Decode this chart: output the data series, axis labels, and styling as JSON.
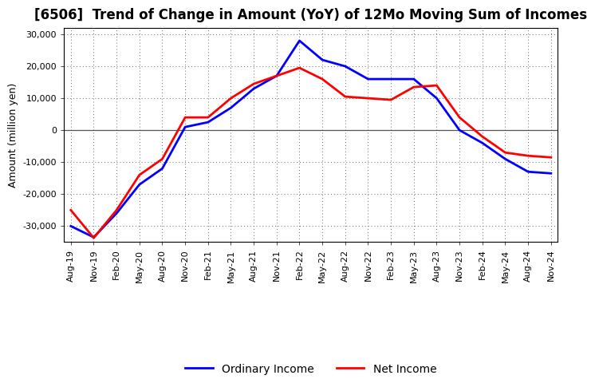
{
  "title": "[6506]  Trend of Change in Amount (YoY) of 12Mo Moving Sum of Incomes",
  "ylabel": "Amount (million yen)",
  "background_color": "#ffffff",
  "plot_bg_color": "#ffffff",
  "x_labels": [
    "Aug-19",
    "Nov-19",
    "Feb-20",
    "May-20",
    "Aug-20",
    "Nov-20",
    "Feb-21",
    "May-21",
    "Aug-21",
    "Nov-21",
    "Feb-22",
    "May-22",
    "Aug-22",
    "Nov-22",
    "Feb-23",
    "May-23",
    "Aug-23",
    "Nov-23",
    "Feb-24",
    "May-24",
    "Aug-24",
    "Nov-24"
  ],
  "ordinary_income": [
    -30000,
    -33500,
    -26000,
    -17000,
    -12000,
    1000,
    2500,
    7000,
    13000,
    17000,
    28000,
    22000,
    20000,
    16000,
    16000,
    16000,
    10000,
    0,
    -4000,
    -9000,
    -13000,
    -13500
  ],
  "net_income": [
    -25000,
    -33700,
    -25000,
    -14000,
    -9000,
    4000,
    4000,
    10000,
    14500,
    17000,
    19500,
    16000,
    10500,
    10000,
    9500,
    13500,
    14000,
    4000,
    -2000,
    -7000,
    -8000,
    -8500
  ],
  "ordinary_color": "#0000ff",
  "net_color": "#ff0000",
  "ylim": [
    -35000,
    32000
  ],
  "yticks": [
    -30000,
    -20000,
    -10000,
    0,
    10000,
    20000,
    30000
  ],
  "line_width": 2.0,
  "title_fontsize": 12,
  "legend_fontsize": 10,
  "tick_fontsize": 8,
  "ylabel_fontsize": 9
}
